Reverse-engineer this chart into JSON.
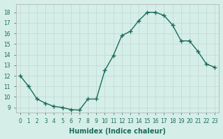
{
  "x": [
    0,
    1,
    2,
    3,
    4,
    5,
    6,
    7,
    8,
    9,
    10,
    11,
    12,
    13,
    14,
    15,
    16,
    17,
    18,
    19,
    20,
    21,
    22,
    23
  ],
  "y": [
    12.0,
    11.0,
    9.8,
    9.4,
    9.1,
    9.0,
    8.8,
    8.75,
    9.8,
    9.8,
    12.5,
    13.9,
    15.8,
    16.2,
    17.2,
    18.0,
    18.0,
    17.7,
    16.8,
    15.3,
    15.3,
    14.3,
    13.1,
    12.8
  ],
  "line_color": "#1a6b5a",
  "marker": "+",
  "marker_size": 4,
  "linewidth": 1.0,
  "xlabel": "Humidex (Indice chaleur)",
  "xlabel_fontsize": 7,
  "ylim": [
    8.5,
    18.8
  ],
  "xlim": [
    -0.5,
    23.5
  ],
  "yticks": [
    9,
    10,
    11,
    12,
    13,
    14,
    15,
    16,
    17,
    18
  ],
  "xticks": [
    0,
    1,
    2,
    3,
    4,
    5,
    6,
    7,
    8,
    9,
    10,
    11,
    12,
    13,
    14,
    15,
    16,
    17,
    18,
    19,
    20,
    21,
    22,
    23
  ],
  "background_color": "#d6eee8",
  "grid_color": "#c0d8d2",
  "tick_fontsize": 5.5,
  "fig_bg": "#d6eee8"
}
